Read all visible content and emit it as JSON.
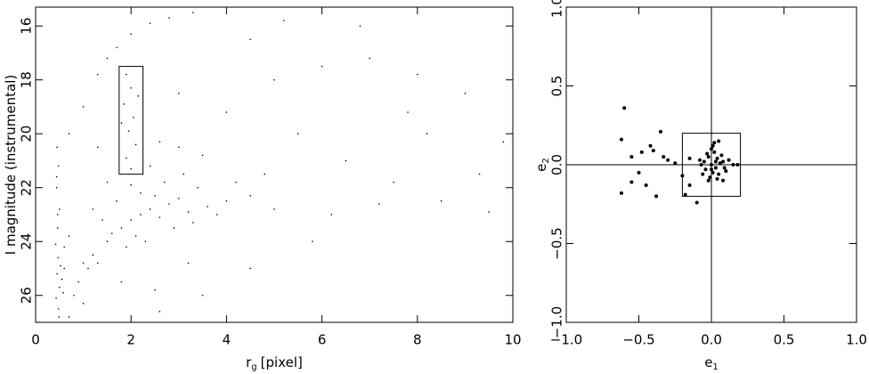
{
  "chart_data": [
    {
      "type": "scatter",
      "xlabel": "r",
      "xlabel_subscript": "g",
      "xlabel_suffix": "[pixel]",
      "ylabel": "I magnitude (instrumental)",
      "xlim": [
        0,
        10
      ],
      "ylim": [
        27,
        15.3
      ],
      "xticks": [
        0,
        2,
        4,
        6,
        8,
        10
      ],
      "yticks": [
        16,
        18,
        20,
        22,
        24,
        26
      ],
      "color": "#000000",
      "selection_box": {
        "x": [
          1.75,
          2.25
        ],
        "y": [
          17.5,
          21.5
        ]
      },
      "x": [
        0.45,
        0.48,
        0.44,
        0.5,
        0.46,
        0.42,
        0.47,
        0.45,
        0.5,
        0.43,
        0.48,
        0.52,
        0.55,
        0.6,
        0.58,
        0.46,
        0.49,
        0.44,
        1.2,
        1.5,
        1.8,
        2.0,
        2.2,
        2.4,
        2.6,
        2.8,
        3.0,
        3.2,
        1.6,
        1.9,
        2.1,
        2.3,
        2.5,
        2.7,
        3.1,
        3.4,
        3.6,
        2.0,
        1.4,
        1.1,
        0.9,
        0.8,
        1.0,
        1.3,
        2.9,
        3.3,
        3.8,
        4.0,
        4.2,
        3.5,
        3.0,
        2.6,
        4.5,
        4.8,
        5.0,
        1.7,
        2.2,
        2.4,
        1.5,
        1.2,
        0.7,
        0.6,
        1.8,
        2.5,
        3.2,
        1.0,
        0.7,
        1.9,
        2.0,
        1.85,
        2.05,
        1.95,
        2.1,
        1.9,
        2.0,
        2.15,
        1.8,
        1.7,
        2.0,
        2.4,
        2.8,
        3.3,
        1.5,
        1.3,
        1.0,
        0.7,
        1.3,
        3.0,
        4.0,
        5.0,
        6.0,
        7.0,
        8.0,
        9.0,
        5.5,
        6.5,
        7.5,
        8.5,
        9.3,
        9.5,
        6.2,
        7.2,
        5.8,
        4.5,
        3.5,
        8.2,
        7.8,
        4.5,
        6.8,
        5.2,
        2.6,
        9.8
      ],
      "values": [
        20.5,
        21.2,
        22.0,
        22.8,
        23.5,
        24.1,
        24.6,
        25.2,
        25.7,
        26.1,
        26.5,
        24.9,
        25.4,
        24.2,
        25.9,
        23.0,
        26.8,
        21.6,
        24.5,
        24.0,
        23.5,
        23.2,
        23.0,
        22.8,
        23.1,
        22.6,
        22.4,
        22.9,
        23.7,
        24.2,
        23.8,
        24.0,
        22.3,
        21.8,
        21.5,
        22.0,
        22.7,
        21.9,
        23.2,
        25.0,
        25.5,
        26.0,
        24.8,
        24.8,
        23.5,
        23.3,
        23.0,
        22.5,
        21.8,
        20.8,
        20.5,
        20.3,
        22.3,
        21.5,
        22.8,
        22.5,
        22.2,
        21.2,
        21.8,
        22.8,
        23.8,
        25.0,
        25.5,
        25.8,
        24.8,
        26.3,
        26.8,
        17.8,
        18.3,
        18.9,
        19.4,
        19.9,
        20.4,
        20.9,
        21.3,
        18.6,
        19.6,
        16.8,
        16.3,
        15.9,
        15.7,
        15.5,
        17.2,
        17.8,
        19.0,
        20.0,
        20.5,
        18.5,
        19.2,
        18.0,
        17.5,
        17.2,
        17.8,
        18.5,
        20.0,
        21.0,
        21.8,
        22.5,
        21.5,
        22.9,
        23.0,
        22.6,
        24.0,
        25.0,
        26.0,
        20.0,
        19.2,
        16.5,
        16.0,
        15.8,
        26.6,
        20.3
      ]
    },
    {
      "type": "scatter",
      "xlabel": "e",
      "xlabel_subscript": "1",
      "ylabel": "e",
      "ylabel_subscript": "2",
      "xlim": [
        -1,
        1
      ],
      "ylim": [
        -1,
        1
      ],
      "zero_lines": true,
      "color": "#000000",
      "xticks": [
        {
          "value": -1,
          "label": "−1.0"
        },
        {
          "value": -0.5,
          "label": "−0.5"
        },
        {
          "value": 0,
          "label": "0.0"
        },
        {
          "value": 0.5,
          "label": "0.5"
        },
        {
          "value": 1,
          "label": "1.0"
        }
      ],
      "yticks": [
        {
          "value": -1,
          "label": "−1.0"
        },
        {
          "value": -0.5,
          "label": "−0.5"
        },
        {
          "value": 0,
          "label": "0.0"
        },
        {
          "value": 0.5,
          "label": "0.5"
        },
        {
          "value": 1,
          "label": "1.0"
        }
      ],
      "selection_box": {
        "x": [
          -0.2,
          0.2
        ],
        "y": [
          -0.2,
          0.2
        ]
      },
      "x": [
        -0.6,
        -0.62,
        -0.55,
        -0.42,
        -0.35,
        -0.48,
        -0.4,
        -0.3,
        -0.5,
        -0.45,
        -0.55,
        -0.62,
        -0.38,
        -0.33,
        -0.25,
        -0.2,
        -0.15,
        -0.18,
        -0.1,
        -0.15,
        0.05,
        0.02,
        0.12,
        0.1,
        0.15,
        0.08,
        0.18,
        -0.05,
        0.0,
        0.03,
        -0.02,
        0.04,
        0.01,
        -0.04,
        0.06,
        -0.07,
        0.02,
        -0.01,
        0.05,
        0.0,
        -0.03,
        0.07,
        0.03,
        -0.06,
        0.0,
        0.08,
        -0.08,
        0.01,
        0.04,
        -0.02,
        0.09
      ],
      "values": [
        0.36,
        0.16,
        0.05,
        0.12,
        0.21,
        0.08,
        0.09,
        0.03,
        -0.05,
        -0.13,
        -0.11,
        -0.18,
        -0.2,
        0.05,
        0.01,
        -0.07,
        -0.13,
        -0.19,
        -0.24,
        0.04,
        0.15,
        0.14,
        0.03,
        -0.04,
        0.0,
        -0.1,
        0.0,
        0.02,
        0.0,
        -0.02,
        0.05,
        0.04,
        -0.05,
        -0.03,
        0.01,
        0.0,
        0.08,
        -0.08,
        -0.06,
        0.1,
        0.07,
        0.06,
        0.02,
        -0.06,
        -0.03,
        0.02,
        0.03,
        0.12,
        -0.09,
        -0.1,
        -0.02
      ]
    }
  ]
}
